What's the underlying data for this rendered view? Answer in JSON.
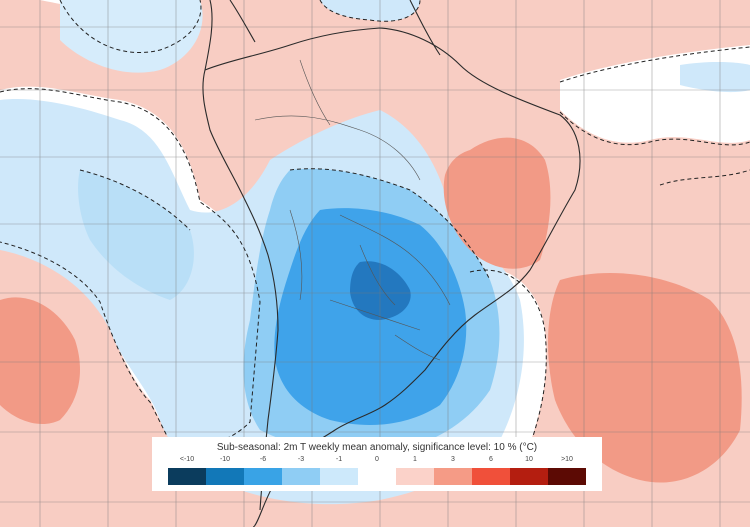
{
  "legend": {
    "title": "Sub-seasonal: 2m T weekly mean anomaly, significance level: 10 % (°C)",
    "ticks": [
      "<-10",
      "-10",
      "-6",
      "-3",
      "-1",
      "0",
      "1",
      "3",
      "6",
      "10",
      ">10"
    ],
    "colors": [
      "#0b3c5d",
      "#1278b8",
      "#39a3e6",
      "#8fcdf4",
      "#cde9fb",
      "#ffffff",
      "#fbd2c9",
      "#f59b86",
      "#f0503a",
      "#b41e10",
      "#5c0a04"
    ]
  },
  "map": {
    "ocean_color": "#f6c9bf",
    "cold_color": "#2f95e0",
    "warm_color": "#f29a86",
    "land_outline_color": "#333333",
    "significance_line": "dashed"
  }
}
